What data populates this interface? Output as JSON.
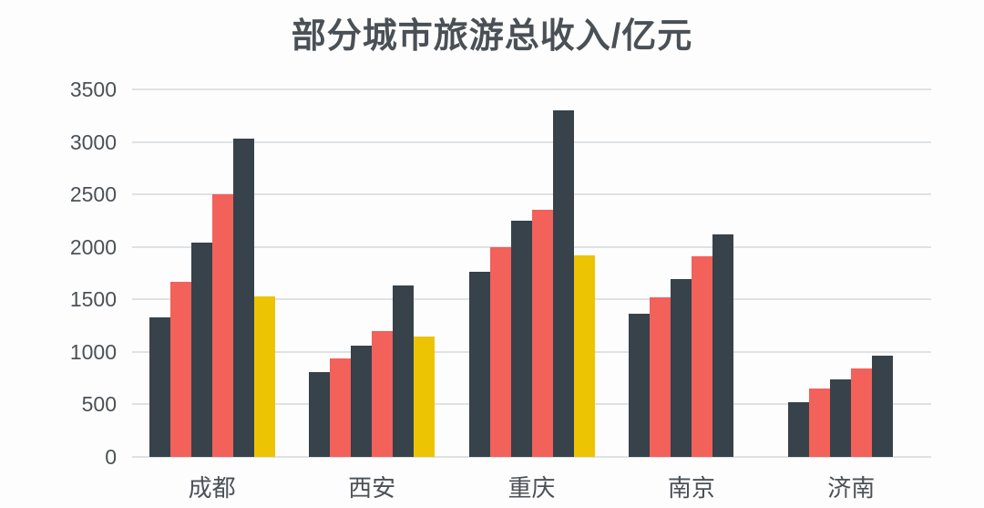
{
  "page": {
    "background": "#fdfdfd",
    "text_color": "#4c5157",
    "gridline_color": "#dfe2e5",
    "title_color": "#4a5056"
  },
  "chart_data": {
    "type": "bar",
    "title": "部分城市旅游总收入/亿元",
    "xlabel": "",
    "ylabel": "",
    "categories": [
      "成都",
      "西安",
      "重庆",
      "南京",
      "济南"
    ],
    "series": [
      {
        "name": "series-1",
        "color": "#37424a",
        "values": [
          1330,
          810,
          1760,
          1360,
          520
        ]
      },
      {
        "name": "series-2",
        "color": "#f2615a",
        "values": [
          1670,
          940,
          2000,
          1520,
          650
        ]
      },
      {
        "name": "series-3",
        "color": "#37424a",
        "values": [
          2040,
          1060,
          2250,
          1690,
          740
        ]
      },
      {
        "name": "series-4",
        "color": "#f2615a",
        "values": [
          2500,
          1200,
          2350,
          1910,
          840
        ]
      },
      {
        "name": "series-5",
        "color": "#37424a",
        "values": [
          3030,
          1630,
          3300,
          2120,
          960
        ]
      },
      {
        "name": "series-6",
        "color": "#ecc404",
        "values": [
          1530,
          1150,
          1920,
          null,
          null
        ]
      }
    ],
    "ylim": [
      0,
      3500
    ],
    "yticks": [
      0,
      500,
      1000,
      1500,
      2000,
      2500,
      3000,
      3500
    ],
    "grid": "horizontal",
    "legend": "none"
  }
}
